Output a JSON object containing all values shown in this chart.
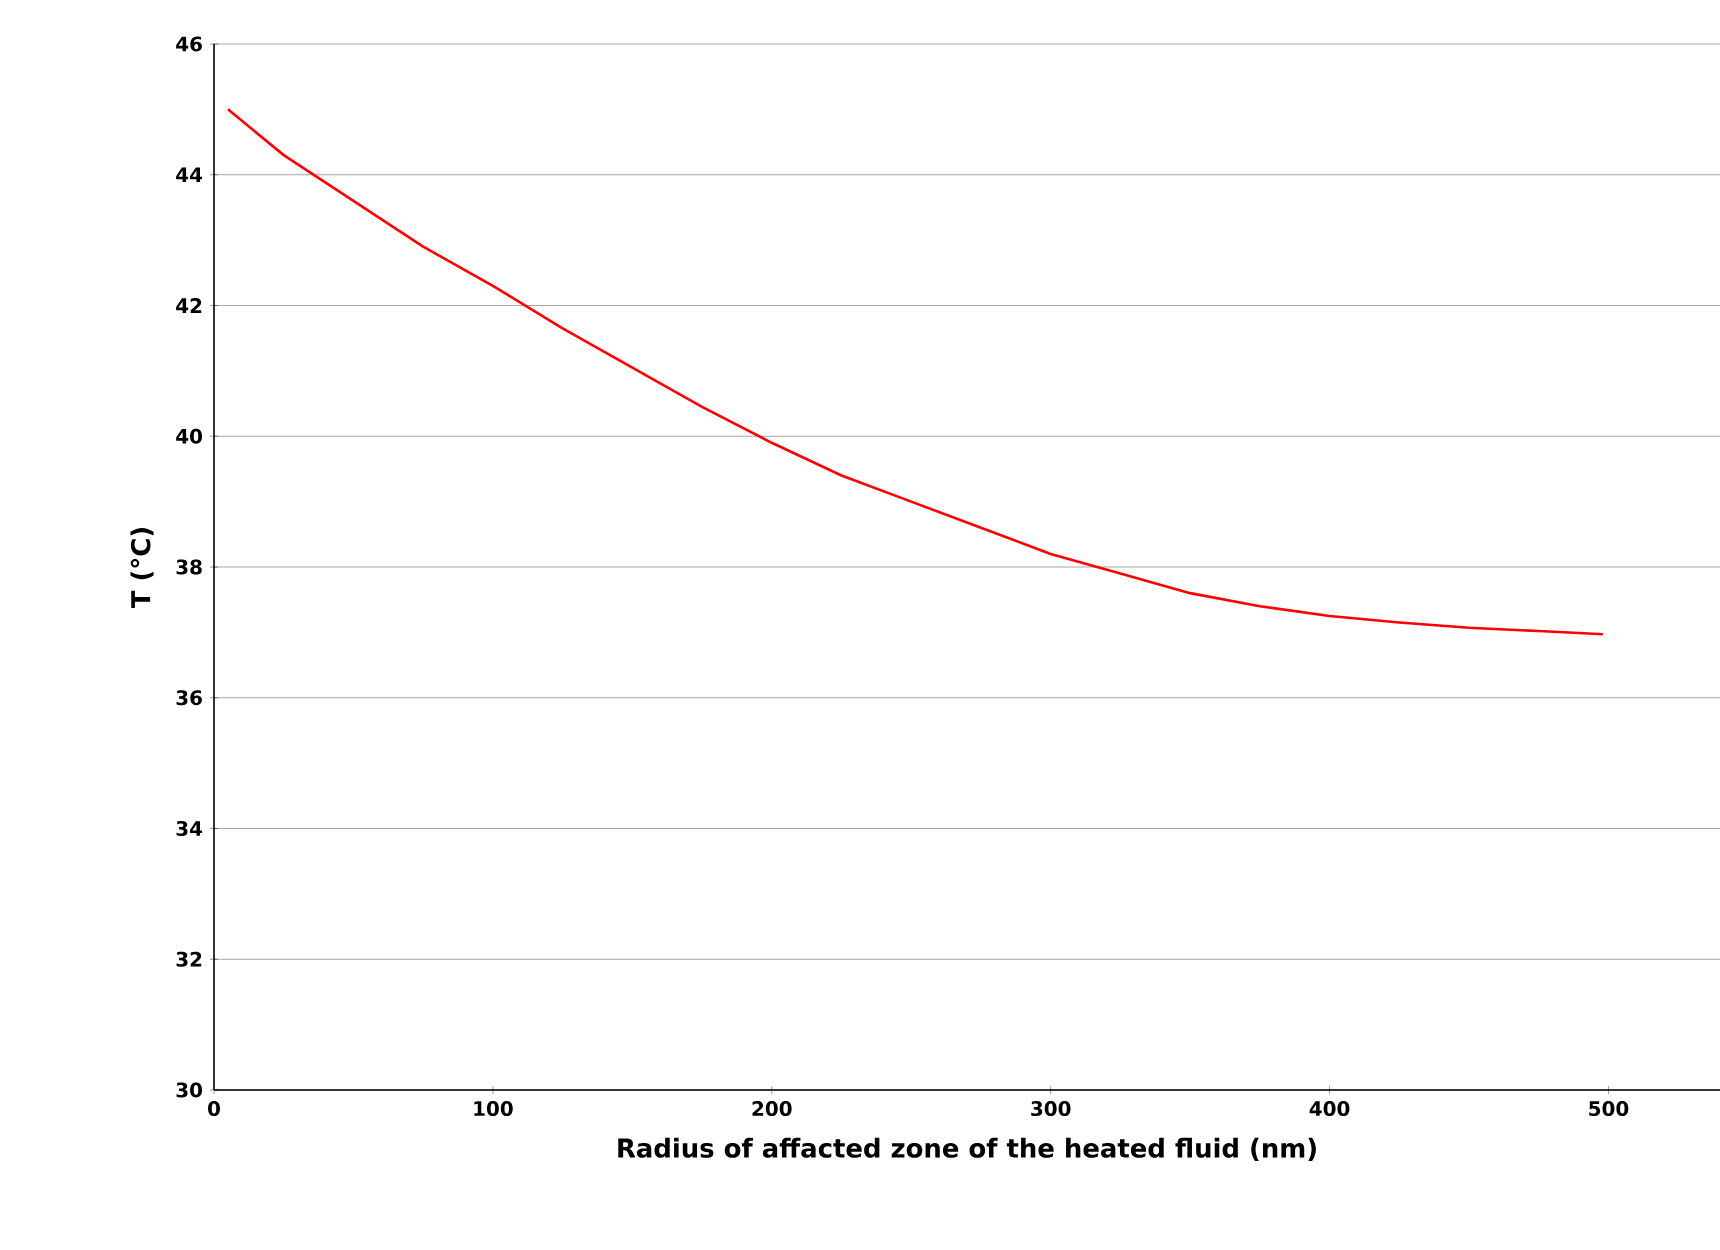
{
  "chart_data": {
    "type": "line",
    "xlabel": "Radius of affacted zone of the heated fluid (nm)",
    "ylabel": "T (°C)",
    "x": [
      5,
      25,
      50,
      75,
      100,
      125,
      150,
      175,
      200,
      225,
      250,
      275,
      300,
      325,
      350,
      375,
      400,
      425,
      450,
      475,
      498
    ],
    "series": [
      {
        "color": "#ff0000",
        "values": [
          45,
          44.3,
          43.6,
          42.9,
          42.3,
          41.65,
          41.05,
          40.45,
          39.9,
          39.4,
          39.0,
          38.6,
          38.2,
          37.9,
          37.6,
          37.4,
          37.25,
          37.15,
          37.07,
          37.02,
          36.97
        ]
      }
    ],
    "xlim": [
      0,
      540
    ],
    "ylim": [
      30,
      46
    ],
    "xticks": [
      0,
      100,
      200,
      300,
      400,
      500
    ],
    "yticks": [
      30,
      32,
      34,
      36,
      38,
      40,
      42,
      44,
      46
    ],
    "grid": "y",
    "marker": "none",
    "line_style": "solid"
  }
}
